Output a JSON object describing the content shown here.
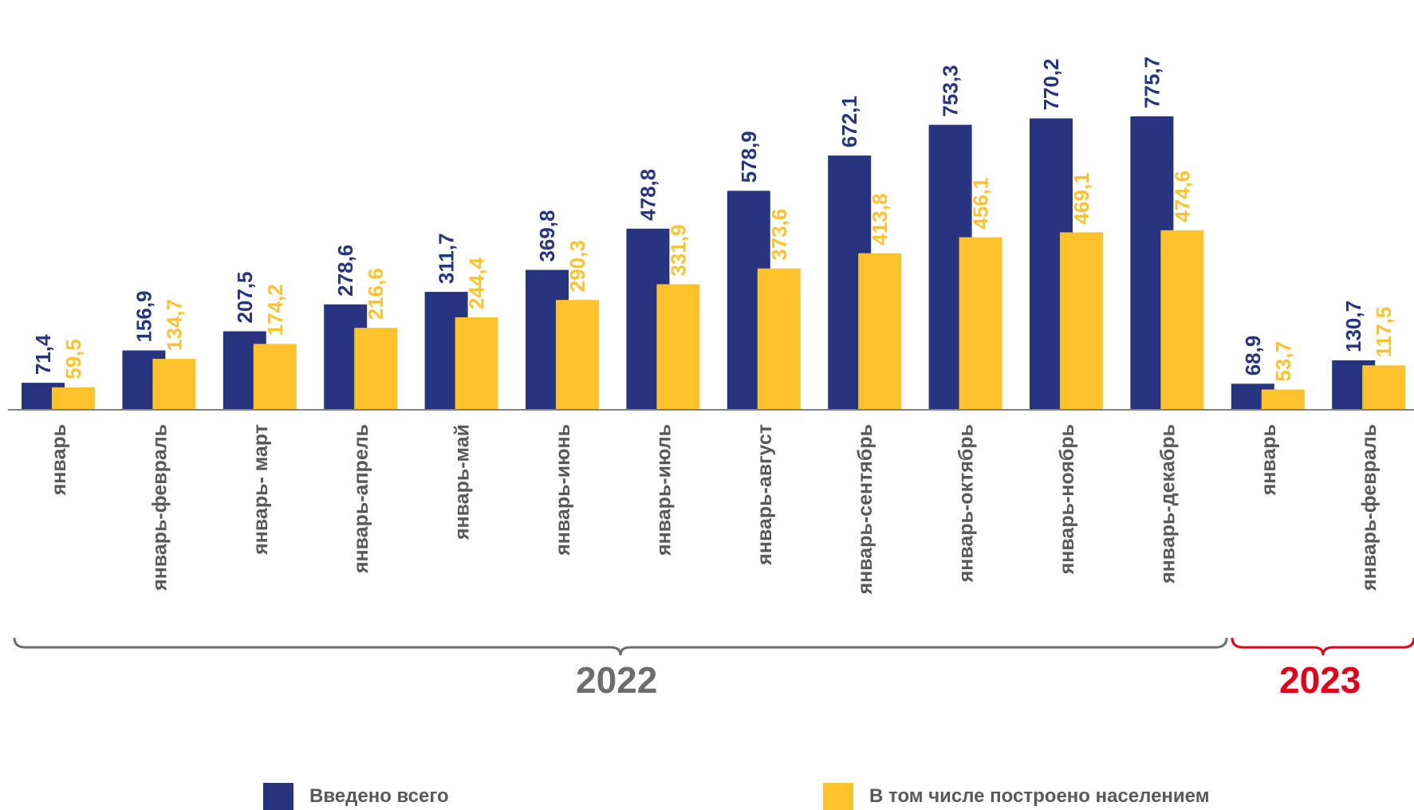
{
  "chart_data": {
    "type": "bar",
    "categories": [
      "январь",
      "январь-февраль",
      "январь- март",
      "январь-апрель",
      "январь-май",
      "январь-июнь",
      "январь-июль",
      "январь-август",
      "январь-сентябрь",
      "январь-октябрь",
      "январь-ноябрь",
      "январь-декабрь",
      "январь",
      "январь-февраль"
    ],
    "series": [
      {
        "name": "Введено всего",
        "color": "#27347F",
        "values": [
          71.4,
          156.9,
          207.5,
          278.6,
          311.7,
          369.8,
          478.8,
          578.9,
          672.1,
          753.3,
          770.2,
          775.7,
          68.9,
          130.7
        ],
        "labels": [
          "71,4",
          "156,9",
          "207,5",
          "278,6",
          "311,7",
          "369,8",
          "478,8",
          "578,9",
          "672,1",
          "753,3",
          "770,2",
          "775,7",
          "68,9",
          "130,7"
        ]
      },
      {
        "name": "В том числе построено населением",
        "color": "#FEC22D",
        "values": [
          59.5,
          134.7,
          174.2,
          216.6,
          244.4,
          290.3,
          331.9,
          373.6,
          413.8,
          456.1,
          469.1,
          474.6,
          53.7,
          117.5
        ],
        "labels": [
          "59,5",
          "134,7",
          "174,2",
          "216,6",
          "244,4",
          "290,3",
          "331,9",
          "373,6",
          "413,8",
          "456,1",
          "469,1",
          "474,6",
          "53,7",
          "117,5"
        ]
      }
    ],
    "groups": [
      {
        "label": "2022",
        "from": 0,
        "to": 11,
        "color": "#6D6D6D"
      },
      {
        "label": "2023",
        "from": 12,
        "to": 13,
        "color": "#E3001B"
      }
    ],
    "title": "",
    "xlabel": "",
    "ylabel": "",
    "ylim": [
      0,
      800
    ],
    "grid": false,
    "legend": "bottom"
  }
}
